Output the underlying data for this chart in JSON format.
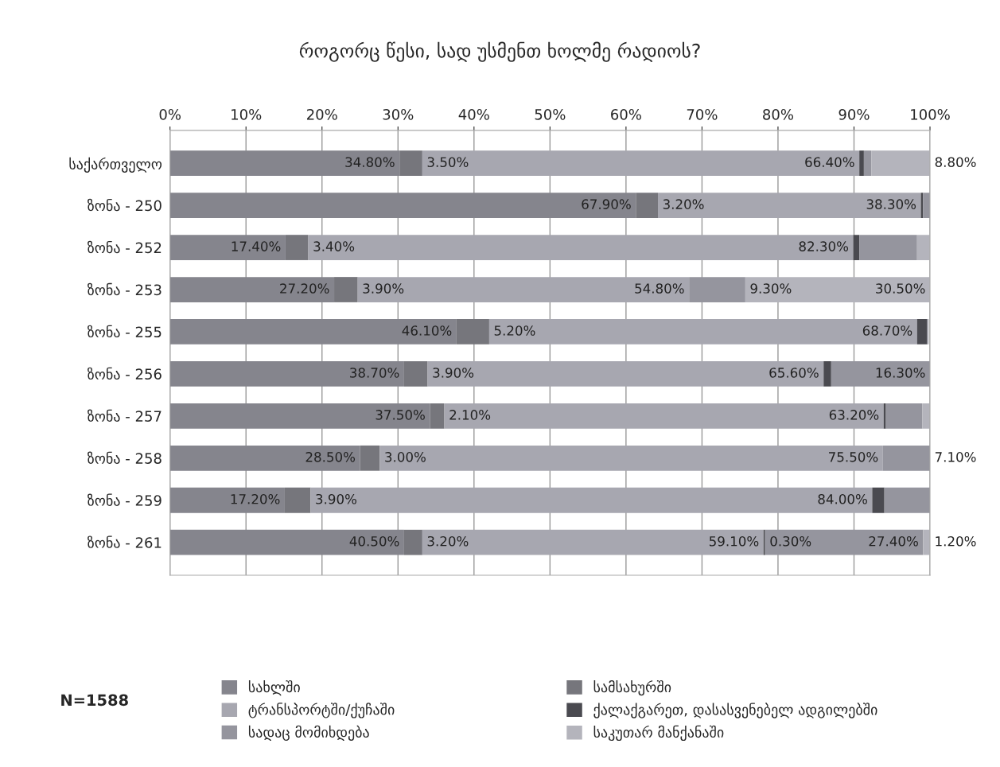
{
  "chart_data": {
    "type": "bar",
    "orientation": "horizontal",
    "stacked": true,
    "title": "როგორც წესი, სად უსმენთ ხოლმე რადიოს?",
    "categories": [
      "საქართველო",
      "ზონა - 250",
      "ზონა - 252",
      "ზონა - 253",
      "ზონა - 255",
      "ზონა - 256",
      "ზონა - 257",
      "ზონა - 258",
      "ზონა - 259",
      "ზონა - 261"
    ],
    "series": [
      {
        "name": "სახლში",
        "color": "#85858d",
        "values": [
          30.2,
          61.3,
          15.2,
          21.6,
          37.7,
          30.8,
          34.2,
          25.0,
          15.1,
          30.8
        ]
      },
      {
        "name": "სამსახურში",
        "color": "#76767c",
        "values": [
          3.0,
          2.9,
          3.0,
          3.1,
          4.3,
          3.1,
          1.9,
          2.6,
          3.4,
          2.4
        ]
      },
      {
        "name": "ტრანსპორტში/ქუჩაში",
        "color": "#a7a7b0",
        "values": [
          57.5,
          34.6,
          71.7,
          43.6,
          56.3,
          52.1,
          57.8,
          66.2,
          73.9,
          44.9
        ]
      },
      {
        "name": "ქალაქგარეთ, დასასვენებელ ადგილებში",
        "color": "#4a4a50",
        "values": [
          0.6,
          0.3,
          0.8,
          0.0,
          1.3,
          1.0,
          0.3,
          0.0,
          1.6,
          0.2
        ]
      },
      {
        "name": "სადაც მომიხდება",
        "color": "#95959e",
        "values": [
          1.0,
          0.9,
          7.6,
          7.4,
          0.2,
          13.0,
          4.8,
          6.2,
          6.0,
          20.8
        ]
      },
      {
        "name": "საკუთარ მანქანაში",
        "color": "#b4b4bc",
        "values": [
          7.7,
          0.0,
          1.7,
          24.3,
          null,
          0.0,
          1.0,
          0.0,
          0.0,
          0.9
        ]
      }
    ],
    "xlim": [
      0,
      100
    ],
    "xticks": [
      {
        "value": 0,
        "label": "0%"
      },
      {
        "value": 10,
        "label": "10%"
      },
      {
        "value": 20,
        "label": "20%"
      },
      {
        "value": 30,
        "label": "30%"
      },
      {
        "value": 40,
        "label": "40%"
      },
      {
        "value": 50,
        "label": "50%"
      },
      {
        "value": 60,
        "label": "60%"
      },
      {
        "value": 70,
        "label": "70%"
      },
      {
        "value": 80,
        "label": "80%"
      },
      {
        "value": 90,
        "label": "90%"
      },
      {
        "value": 100,
        "label": "100%"
      }
    ],
    "grid": "x",
    "legend": "bottom",
    "annotations": [
      {
        "text": "34.80%",
        "x": 30.2,
        "y": "საქართველო"
      },
      {
        "text": "3.50%",
        "x": 33.2,
        "y": "საქართველო"
      },
      {
        "text": "66.40%",
        "x": 90.7,
        "y": "საქართველო"
      },
      {
        "text": "8.80%",
        "x": 100,
        "y": "საქართველო"
      },
      {
        "text": "67.90%",
        "x": 61.3,
        "y": "ზონა - 250"
      },
      {
        "text": "3.20%",
        "x": 64.2,
        "y": "ზონა - 250"
      },
      {
        "text": "38.30%",
        "x": 98.8,
        "y": "ზონა - 250"
      },
      {
        "text": "17.40%",
        "x": 15.2,
        "y": "ზონა - 252"
      },
      {
        "text": "3.40%",
        "x": 18.2,
        "y": "ზონა - 252"
      },
      {
        "text": "82.30%",
        "x": 89.9,
        "y": "ზონა - 252"
      },
      {
        "text": "27.20%",
        "x": 21.6,
        "y": "ზონა - 253"
      },
      {
        "text": "3.90%",
        "x": 24.7,
        "y": "ზონა - 253"
      },
      {
        "text": "54.80%",
        "x": 68.3,
        "y": "ზონა - 253"
      },
      {
        "text": "9.30%",
        "x": 75.7,
        "y": "ზონა - 253"
      },
      {
        "text": "30.50%",
        "x": 100,
        "y": "ზონა - 253"
      },
      {
        "text": "46.10%",
        "x": 37.7,
        "y": "ზონა - 255"
      },
      {
        "text": "5.20%",
        "x": 42.0,
        "y": "ზონა - 255"
      },
      {
        "text": "68.70%",
        "x": 98.3,
        "y": "ზონა - 255"
      },
      {
        "text": "38.70%",
        "x": 30.8,
        "y": "ზონა - 256"
      },
      {
        "text": "3.90%",
        "x": 33.9,
        "y": "ზონა - 256"
      },
      {
        "text": "65.60%",
        "x": 86.0,
        "y": "ზონა - 256"
      },
      {
        "text": "16.30%",
        "x": 100,
        "y": "ზონა - 256"
      },
      {
        "text": "37.50%",
        "x": 34.2,
        "y": "ზონა - 257"
      },
      {
        "text": "2.10%",
        "x": 36.1,
        "y": "ზონა - 257"
      },
      {
        "text": "63.20%",
        "x": 93.9,
        "y": "ზონა - 257"
      },
      {
        "text": "28.50%",
        "x": 25.0,
        "y": "ზონა - 258"
      },
      {
        "text": "3.00%",
        "x": 27.6,
        "y": "ზონა - 258"
      },
      {
        "text": "75.50%",
        "x": 93.8,
        "y": "ზონა - 258"
      },
      {
        "text": "7.10%",
        "x": 100,
        "y": "ზონა - 258"
      },
      {
        "text": "17.20%",
        "x": 15.1,
        "y": "ზონა - 259"
      },
      {
        "text": "3.90%",
        "x": 18.5,
        "y": "ზონა - 259"
      },
      {
        "text": "84.00%",
        "x": 92.4,
        "y": "ზონა - 259"
      },
      {
        "text": "40.50%",
        "x": 30.8,
        "y": "ზონა - 261"
      },
      {
        "text": "3.20%",
        "x": 33.2,
        "y": "ზონა - 261"
      },
      {
        "text": "59.10%",
        "x": 78.1,
        "y": "ზონა - 261"
      },
      {
        "text": "0.30%",
        "x": 78.3,
        "y": "ზონა - 261"
      },
      {
        "text": "27.40%",
        "x": 99.1,
        "y": "ზონა - 261"
      },
      {
        "text": "1.20%",
        "x": 100,
        "y": "ზონა - 261"
      },
      "N=1588"
    ]
  }
}
